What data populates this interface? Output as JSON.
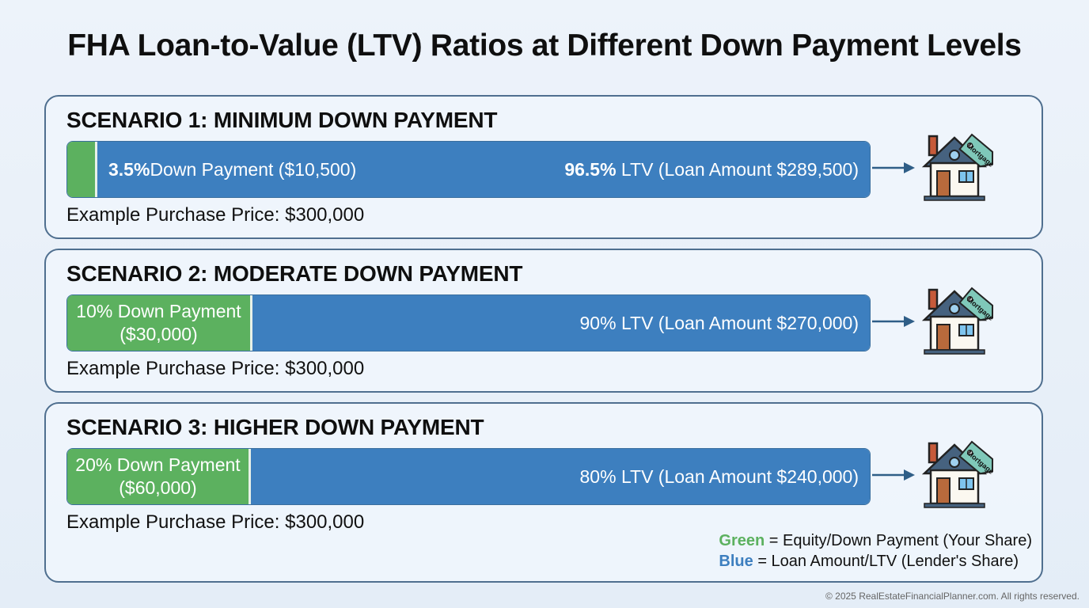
{
  "title": "FHA Loan-to-Value (LTV) Ratios at Different Down Payment Levels",
  "chart_data": {
    "type": "bar",
    "orientation": "horizontal-stacked",
    "categories": [
      "SCENARIO 1: MINIMUM DOWN PAYMENT",
      "SCENARIO 2: MODERATE DOWN PAYMENT",
      "SCENARIO 3: HIGHER DOWN PAYMENT"
    ],
    "series": [
      {
        "name": "Green",
        "color": "#5cb15f",
        "values": [
          3.5,
          10,
          20
        ]
      },
      {
        "name": "Blue",
        "color": "#3d7fbf",
        "values": [
          96.5,
          90,
          80
        ]
      }
    ],
    "xlim": [
      0,
      100
    ]
  },
  "scenarios": [
    {
      "title": "SCENARIO 1: MINIMUM DOWN PAYMENT",
      "down_pct": 3.5,
      "down_bold": "3.5%",
      "down_rest": " Down Payment ($10,500)",
      "loan_bold": "96.5%",
      "loan_rest": " LTV (Loan Amount $289,500)",
      "price": "Example Purchase Price: $300,000"
    },
    {
      "title": "SCENARIO 2: MODERATE DOWN PAYMENT",
      "down_pct": 10,
      "down_line1": "10% Down Payment",
      "down_line2": "($30,000)",
      "loan_text": "90% LTV (Loan Amount $270,000)",
      "price": "Example Purchase Price: $300,000"
    },
    {
      "title": "SCENARIO 3: HIGHER DOWN PAYMENT",
      "down_pct": 20,
      "down_line1": "20% Down Payment",
      "down_line2": "($60,000)",
      "loan_text": "80% LTV (Loan Amount $240,000)",
      "price": "Example Purchase Price: $300,000"
    }
  ],
  "house_tag": "Mortgage",
  "legend": {
    "green_word": "Green",
    "green_rest": " = Equity/Down Payment (Your Share)",
    "blue_word": "Blue",
    "blue_rest": " = Loan Amount/LTV (Lender's Share)"
  },
  "footer": "© 2025 RealEstateFinancialPlanner.com. All rights reserved.",
  "colors": {
    "green": "#5cb15f",
    "blue": "#3d7fbf",
    "border": "#4f6f8f"
  }
}
